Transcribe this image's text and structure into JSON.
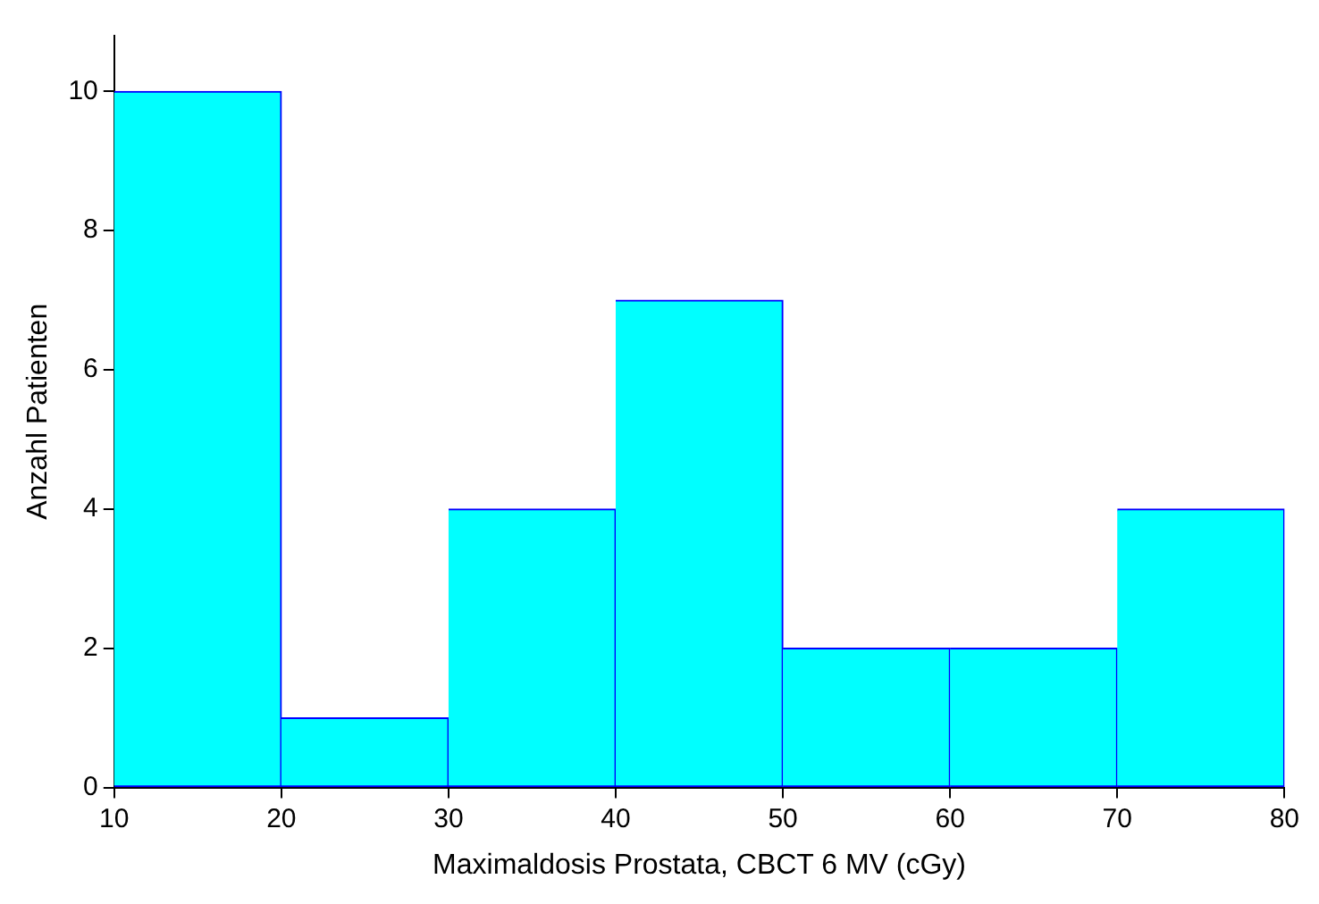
{
  "chart_data": {
    "type": "histogram",
    "xlabel": "Maximaldosis Prostata, CBCT 6 MV (cGy)",
    "ylabel": "Anzahl Patienten",
    "bins": [
      10,
      20,
      30,
      40,
      50,
      60,
      70,
      80
    ],
    "values": [
      10,
      1,
      4,
      7,
      2,
      2,
      4
    ],
    "color": "#00ffff",
    "xlim": [
      10,
      80
    ],
    "xticks": [
      10,
      20,
      30,
      40,
      50,
      60,
      70,
      80
    ],
    "ylim": [
      0,
      10.8
    ],
    "yticks": [
      0,
      2,
      4,
      6,
      8,
      10
    ],
    "grid": false,
    "legend": false
  }
}
